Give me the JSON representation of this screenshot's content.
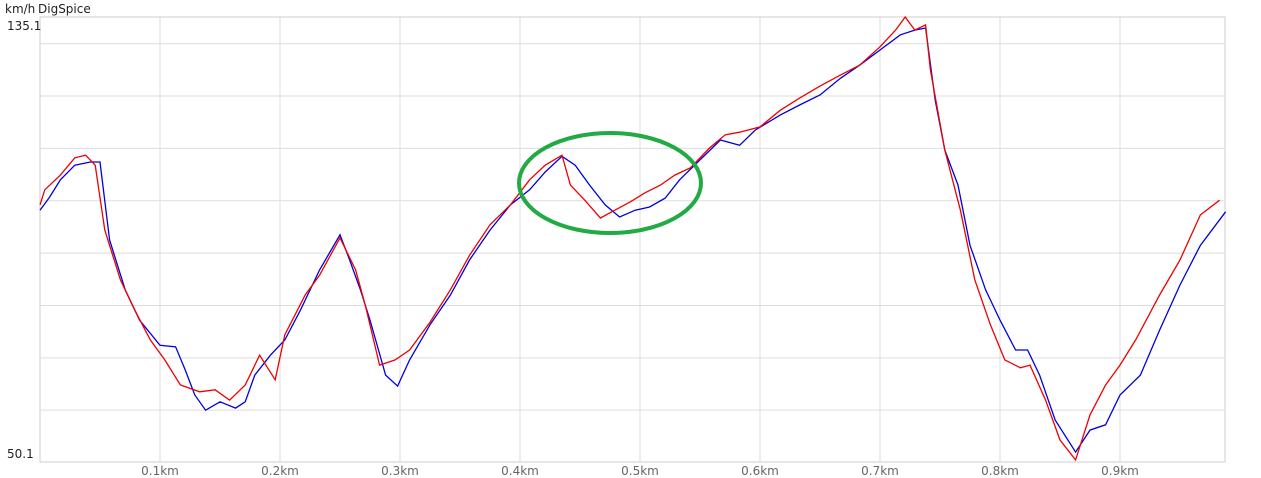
{
  "chart_data": {
    "type": "line",
    "title": "DigSpice",
    "y_label": "km/h",
    "xlim": [
      0,
      0.9875
    ],
    "ylim": [
      50.1,
      135.1
    ],
    "xticks": [
      {
        "value": 0.1,
        "label": "0.1km"
      },
      {
        "value": 0.2,
        "label": "0.2km"
      },
      {
        "value": 0.3,
        "label": "0.3km"
      },
      {
        "value": 0.4,
        "label": "0.4km"
      },
      {
        "value": 0.5,
        "label": "0.5km"
      },
      {
        "value": 0.6,
        "label": "0.6km"
      },
      {
        "value": 0.7,
        "label": "0.7km"
      },
      {
        "value": 0.8,
        "label": "0.8km"
      },
      {
        "value": 0.9,
        "label": "0.9km"
      }
    ],
    "yticks": [
      50.1,
      135.1
    ],
    "ygrid": [
      60,
      70,
      80,
      90,
      100,
      110,
      120,
      130
    ],
    "grid": true,
    "series": [
      {
        "color": "#0000dd",
        "x": [
          0,
          0.008,
          0.017,
          0.029,
          0.042,
          0.05,
          0.058,
          0.071,
          0.083,
          0.1,
          0.113,
          0.121,
          0.129,
          0.138,
          0.15,
          0.163,
          0.171,
          0.179,
          0.192,
          0.204,
          0.217,
          0.233,
          0.25,
          0.258,
          0.267,
          0.275,
          0.288,
          0.298,
          0.308,
          0.325,
          0.342,
          0.358,
          0.375,
          0.392,
          0.408,
          0.421,
          0.435,
          0.446,
          0.458,
          0.471,
          0.483,
          0.496,
          0.508,
          0.521,
          0.533,
          0.55,
          0.567,
          0.583,
          0.596,
          0.617,
          0.633,
          0.65,
          0.667,
          0.683,
          0.7,
          0.717,
          0.729,
          0.738,
          0.746,
          0.754,
          0.765,
          0.775,
          0.788,
          0.8,
          0.813,
          0.823,
          0.833,
          0.846,
          0.863,
          0.875,
          0.888,
          0.9,
          0.917,
          0.933,
          0.95,
          0.967,
          0.988
        ],
        "values": [
          98.2,
          100.7,
          104.0,
          106.8,
          107.4,
          107.4,
          92.5,
          83.0,
          77.2,
          72.4,
          72.1,
          67.7,
          62.9,
          60.0,
          61.6,
          60.4,
          61.6,
          66.7,
          70.5,
          73.4,
          79.1,
          86.8,
          93.5,
          88.7,
          83.0,
          77.2,
          66.7,
          64.6,
          69.6,
          76.3,
          82.0,
          88.7,
          94.4,
          99.2,
          102.1,
          105.5,
          108.5,
          106.8,
          103.0,
          99.2,
          96.9,
          98.2,
          98.8,
          100.5,
          104.0,
          107.8,
          111.6,
          110.6,
          113.5,
          116.4,
          118.3,
          120.2,
          123.4,
          125.9,
          128.8,
          131.7,
          132.6,
          133.0,
          119.2,
          109.7,
          103.0,
          91.5,
          83.0,
          77.2,
          71.5,
          71.5,
          66.7,
          58.1,
          52.0,
          56.2,
          57.2,
          62.9,
          66.7,
          75.3,
          83.9,
          91.5,
          97.9
        ]
      },
      {
        "color": "#ee0000",
        "x": [
          0,
          0.004,
          0.017,
          0.029,
          0.038,
          0.046,
          0.054,
          0.067,
          0.079,
          0.092,
          0.104,
          0.117,
          0.133,
          0.146,
          0.158,
          0.171,
          0.183,
          0.196,
          0.204,
          0.221,
          0.233,
          0.25,
          0.263,
          0.271,
          0.283,
          0.296,
          0.308,
          0.325,
          0.342,
          0.358,
          0.375,
          0.392,
          0.408,
          0.421,
          0.435,
          0.442,
          0.454,
          0.467,
          0.479,
          0.492,
          0.504,
          0.517,
          0.529,
          0.542,
          0.558,
          0.571,
          0.583,
          0.6,
          0.617,
          0.633,
          0.65,
          0.667,
          0.683,
          0.7,
          0.713,
          0.721,
          0.729,
          0.738,
          0.742,
          0.754,
          0.767,
          0.779,
          0.792,
          0.804,
          0.817,
          0.825,
          0.838,
          0.85,
          0.863,
          0.875,
          0.888,
          0.9,
          0.913,
          0.933,
          0.95,
          0.967,
          0.983
        ],
        "values": [
          99.2,
          102.1,
          104.9,
          108.2,
          108.7,
          106.8,
          94.4,
          84.9,
          79.1,
          73.4,
          69.6,
          64.8,
          63.5,
          63.9,
          61.9,
          64.8,
          70.5,
          65.8,
          74.4,
          82.0,
          85.8,
          92.9,
          86.8,
          80.1,
          68.6,
          69.6,
          71.5,
          76.8,
          83.0,
          89.6,
          95.4,
          99.2,
          104.0,
          106.8,
          108.7,
          103.0,
          100.1,
          96.7,
          98.2,
          99.8,
          101.5,
          103.0,
          104.9,
          106.3,
          110.1,
          112.6,
          113.1,
          114.1,
          117.3,
          119.6,
          121.9,
          124.0,
          125.9,
          129.4,
          132.6,
          135.1,
          132.6,
          133.6,
          125.0,
          109.7,
          98.2,
          84.9,
          76.3,
          69.6,
          68.1,
          68.6,
          61.9,
          54.3,
          50.5,
          59.1,
          64.8,
          68.6,
          73.4,
          82.0,
          88.7,
          97.3,
          100.1
        ]
      }
    ]
  }
}
